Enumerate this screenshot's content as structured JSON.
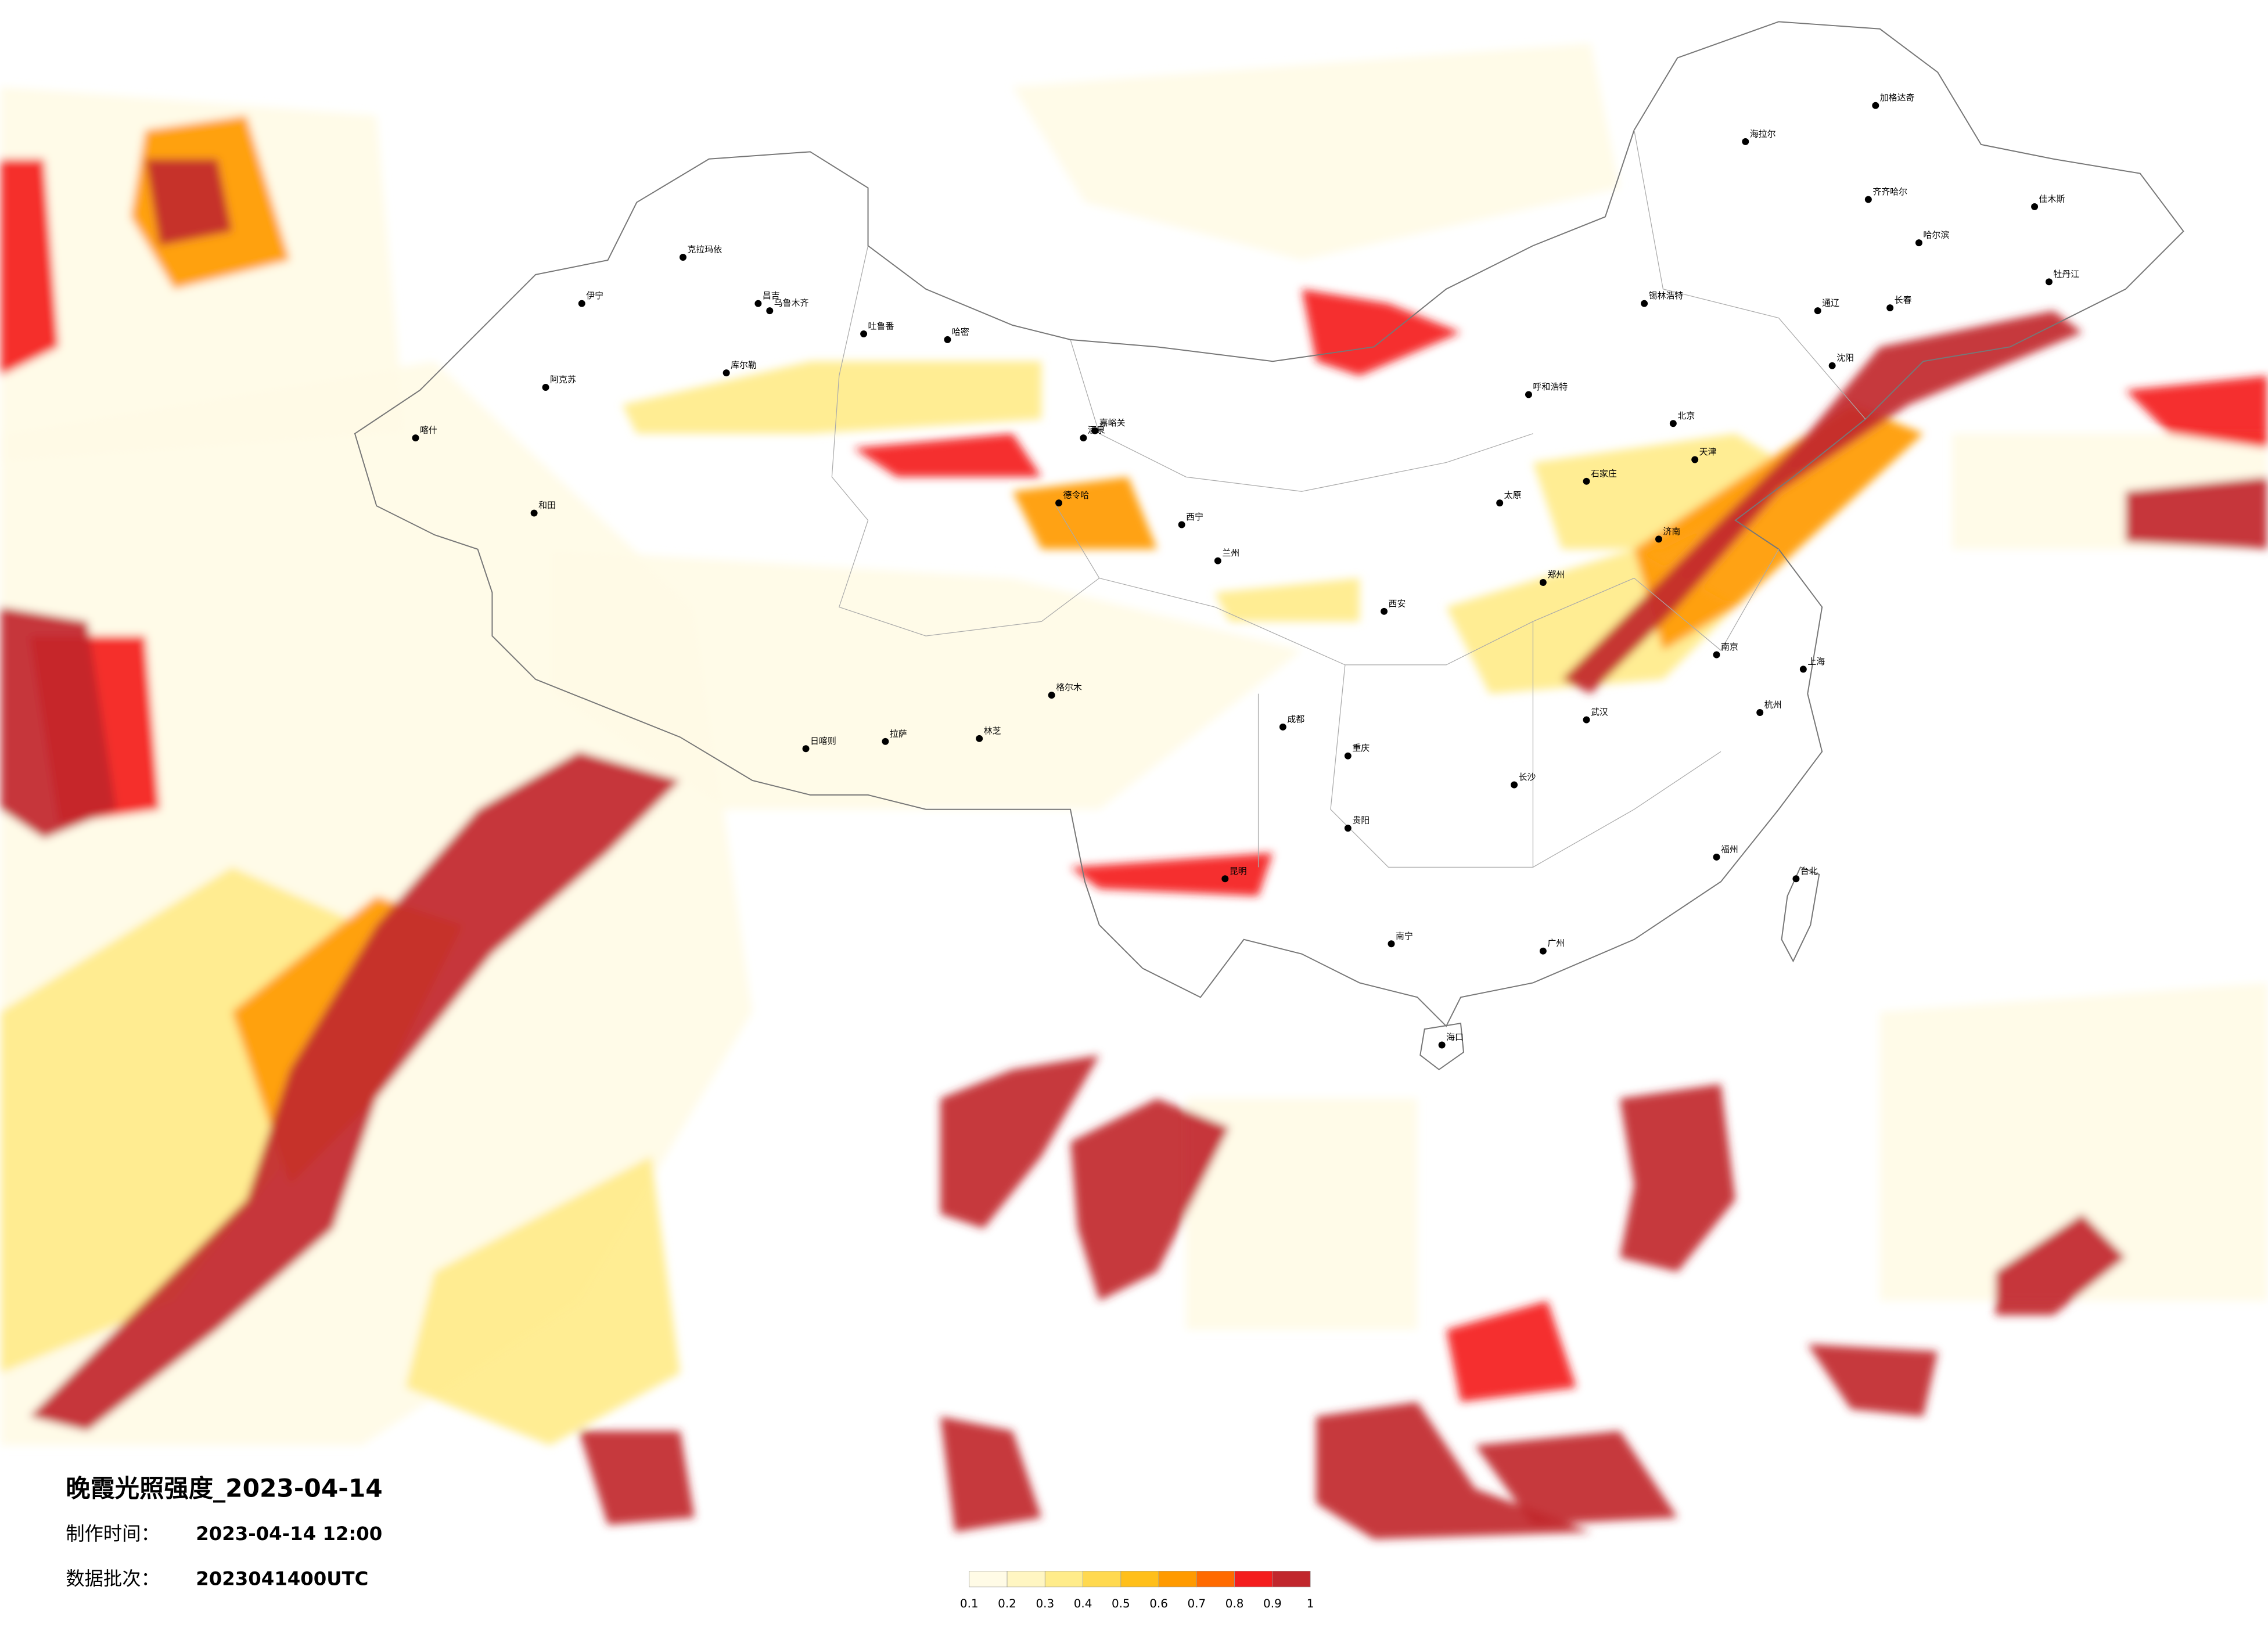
{
  "title": "晚霞光照强度_2023-04-14",
  "info": [
    {
      "label": "制作时间：",
      "value": "2023-04-14 12:00"
    },
    {
      "label": "数据批次：",
      "value": "2023041400UTC"
    }
  ],
  "legend": {
    "ticks": [
      0.1,
      0.2,
      0.3,
      0.4,
      0.5,
      0.6,
      0.7,
      0.8,
      0.9,
      1
    ],
    "colors": [
      "#fffbe6",
      "#fff6c2",
      "#ffec8a",
      "#ffd94f",
      "#ffbf1a",
      "#ff9a00",
      "#ff6a00",
      "#f41d1d",
      "#c1272d"
    ]
  },
  "cities": [
    "克拉玛依",
    "伊宁",
    "阿克苏",
    "喀什",
    "和田",
    "昌吉",
    "乌鲁木齐",
    "吐鲁番",
    "哈密",
    "库尔勒",
    "嘉峪关",
    "酒泉",
    "格尔木",
    "德令哈",
    "西宁",
    "兰州",
    "拉萨",
    "日喀则",
    "林芝",
    "成都",
    "重庆",
    "昆明",
    "贵阳",
    "南宁",
    "海口",
    "广州",
    "福州",
    "台北",
    "杭州",
    "上海",
    "南京",
    "武汉",
    "长沙",
    "北京",
    "天津",
    "石家庄",
    "济南",
    "郑州",
    "西安",
    "太原",
    "呼和浩特",
    "沈阳",
    "长春",
    "哈尔滨",
    "加格达奇",
    "海拉尔",
    "齐齐哈尔",
    "佳木斯",
    "牡丹江",
    "锡林浩特",
    "通辽"
  ]
}
